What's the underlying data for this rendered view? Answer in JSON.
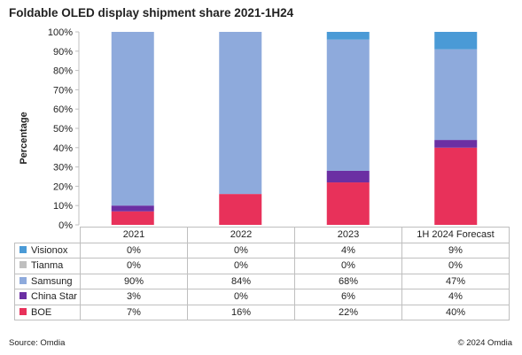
{
  "chart_data": {
    "type": "bar",
    "stacked": true,
    "title": "Foldable OLED display shipment share 2021-1H24",
    "ylabel": "Percentage",
    "xlabel": "",
    "ylim": [
      0,
      100
    ],
    "yticks": [
      "0%",
      "10%",
      "20%",
      "30%",
      "40%",
      "50%",
      "60%",
      "70%",
      "80%",
      "90%",
      "100%"
    ],
    "grid": false,
    "legend": "in-table",
    "categories": [
      "2021",
      "2022",
      "2023",
      "1H 2024 Forecast"
    ],
    "series": [
      {
        "name": "BOE",
        "color": "#e8315a",
        "values": [
          7,
          16,
          22,
          40
        ],
        "labels": [
          "7%",
          "16%",
          "22%",
          "40%"
        ]
      },
      {
        "name": "China Star",
        "color": "#6b2fa3",
        "values": [
          3,
          0,
          6,
          4
        ],
        "labels": [
          "3%",
          "0%",
          "6%",
          "4%"
        ]
      },
      {
        "name": "Samsung",
        "color": "#8eaadc",
        "values": [
          90,
          84,
          68,
          47
        ],
        "labels": [
          "90%",
          "84%",
          "68%",
          "47%"
        ]
      },
      {
        "name": "Tianma",
        "color": "#bfbfbf",
        "values": [
          0,
          0,
          0,
          0
        ],
        "labels": [
          "0%",
          "0%",
          "0%",
          "0%"
        ]
      },
      {
        "name": "Visionox",
        "color": "#4a9ad6",
        "values": [
          0,
          0,
          4,
          9
        ],
        "labels": [
          "0%",
          "0%",
          "4%",
          "9%"
        ]
      }
    ]
  },
  "footer": {
    "source": "Source: Omdia",
    "copyright": "© 2024 Omdia"
  }
}
